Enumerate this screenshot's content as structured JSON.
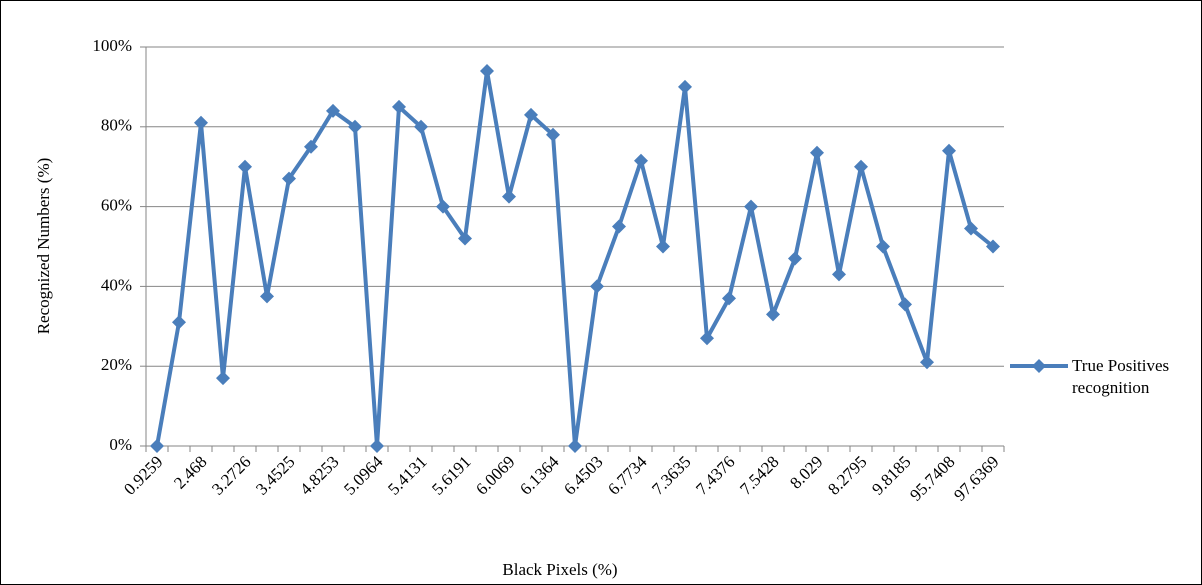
{
  "chart_data": {
    "type": "line",
    "x_label": "Black Pixels (%)",
    "y_label": "Recognized Numbers (%)",
    "categories": [
      "0.9259",
      null,
      "2.468",
      null,
      "3.2726",
      null,
      "3.4525",
      null,
      "4.8253",
      null,
      "5.0964",
      null,
      "5.4131",
      null,
      "5.6191",
      null,
      "6.0069",
      null,
      "6.1364",
      null,
      "6.4503",
      null,
      "6.7734",
      null,
      "7.3635",
      null,
      "7.4376",
      null,
      "7.5428",
      null,
      "8.029",
      null,
      "8.2795",
      null,
      "9.8185",
      null,
      "95.7408",
      null,
      "97.6369"
    ],
    "series": [
      {
        "name": "True Positives recognition",
        "color": "#4a7ebb",
        "values": [
          0,
          31,
          81,
          17,
          70,
          37.5,
          67,
          75,
          84,
          80,
          0,
          85,
          80,
          60,
          52,
          94,
          62.5,
          83,
          78,
          0,
          40,
          55,
          71.5,
          50,
          90,
          27,
          37,
          60,
          33,
          47,
          73.5,
          43,
          70,
          50,
          35.5,
          21,
          74,
          54.5,
          50
        ]
      }
    ],
    "ylim": [
      0,
      100
    ],
    "yticks": [
      {
        "value": 0,
        "label": "0%"
      },
      {
        "value": 20,
        "label": "20%"
      },
      {
        "value": 40,
        "label": "40%"
      },
      {
        "value": 60,
        "label": "60%"
      },
      {
        "value": 80,
        "label": "80%"
      },
      {
        "value": 100,
        "label": "100%"
      }
    ],
    "grid": true,
    "legend": "right"
  }
}
